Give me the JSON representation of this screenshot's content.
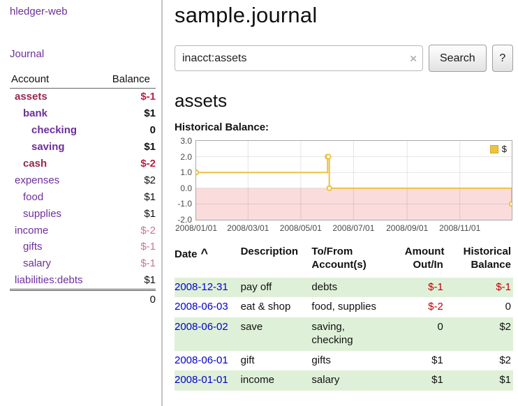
{
  "colors": {
    "purple": "#6d2f9c",
    "maroon": "#96284f",
    "negative_red": "#c01f3f",
    "soft_red": "#c9758b",
    "link_blue": "#0000cc",
    "row_green": "#dff0d8",
    "chart_line": "#EDC240",
    "chart_negative_fill": "#fbdcdc",
    "axis_text": "#4a4a4a",
    "table_red": "#c00000"
  },
  "app": {
    "title": "hledger-web"
  },
  "sidebar": {
    "journal_link": "Journal",
    "accounts": {
      "account_header": "Account",
      "balance_header": "Balance",
      "rows": [
        {
          "name": "assets",
          "indent": 1,
          "bold": true,
          "name_color": "maroon",
          "balance": "$-1",
          "balance_color": "red"
        },
        {
          "name": "bank",
          "indent": 2,
          "bold": true,
          "name_color": "purple",
          "balance": "$1",
          "balance_color": "black"
        },
        {
          "name": "checking",
          "indent": 3,
          "bold": true,
          "name_color": "purple",
          "balance": "0",
          "balance_color": "black"
        },
        {
          "name": "saving",
          "indent": 3,
          "bold": true,
          "name_color": "purple",
          "balance": "$1",
          "balance_color": "black"
        },
        {
          "name": "cash",
          "indent": 2,
          "bold": true,
          "name_color": "maroon",
          "balance": "$-2",
          "balance_color": "red"
        },
        {
          "name": "expenses",
          "indent": 1,
          "bold": false,
          "name_color": "purple",
          "balance": "$2",
          "balance_color": "black"
        },
        {
          "name": "food",
          "indent": 2,
          "bold": false,
          "name_color": "purple",
          "balance": "$1",
          "balance_color": "black"
        },
        {
          "name": "supplies",
          "indent": 2,
          "bold": false,
          "name_color": "purple",
          "balance": "$1",
          "balance_color": "black"
        },
        {
          "name": "income",
          "indent": 1,
          "bold": false,
          "name_color": "purple",
          "balance": "$-2",
          "balance_color": "soft"
        },
        {
          "name": "gifts",
          "indent": 2,
          "bold": false,
          "name_color": "purple",
          "balance": "$-1",
          "balance_color": "soft"
        },
        {
          "name": "salary",
          "indent": 2,
          "bold": false,
          "name_color": "purple",
          "balance": "$-1",
          "balance_color": "soft"
        },
        {
          "name": "liabilities:debts",
          "indent": 1,
          "bold": false,
          "name_color": "purple",
          "balance": "$1",
          "balance_color": "black"
        }
      ],
      "total": "0"
    }
  },
  "main": {
    "title": "sample.journal",
    "search": {
      "value": "inacct:assets",
      "clear_icon": "×",
      "button_label": "Search",
      "help_label": "?"
    },
    "account_heading": "assets"
  },
  "chart_data": {
    "type": "line",
    "step": true,
    "title": "Historical Balance:",
    "legend_label": "$",
    "legend_position": "top-right",
    "series": [
      {
        "name": "$",
        "x": [
          "2008-01-01",
          "2008-06-01",
          "2008-06-02",
          "2008-06-03",
          "2008-12-31"
        ],
        "values": [
          1,
          2,
          2,
          0,
          -1
        ]
      }
    ],
    "ylim": [
      -2,
      3
    ],
    "yticks": [
      3,
      2,
      1,
      0,
      -1,
      -2
    ],
    "xtick_labels": [
      "2008/01/01",
      "2008/03/01",
      "2008/05/01",
      "2008/07/01",
      "2008/09/01",
      "2008/11/01"
    ],
    "grid": true,
    "line_color": "#EDC240",
    "negative_fill": "#fbdcdc"
  },
  "register": {
    "headers": {
      "date": "Date",
      "sort_indicator": "^",
      "description": "Description",
      "accounts": "To/From Account(s)",
      "amount": "Amount Out/In",
      "balance": "Historical Balance"
    },
    "rows": [
      {
        "date": "2008-12-31",
        "description": "pay off",
        "accounts": [
          "debts"
        ],
        "amount": "$-1",
        "amount_negative": true,
        "balance": "$-1",
        "balance_negative": true,
        "shaded": true
      },
      {
        "date": "2008-06-03",
        "description": "eat & shop",
        "accounts": [
          "food, supplies"
        ],
        "amount": "$-2",
        "amount_negative": true,
        "balance": "0",
        "balance_negative": false,
        "shaded": false
      },
      {
        "date": "2008-06-02",
        "description": "save",
        "accounts": [
          "saving,",
          "checking"
        ],
        "amount": "0",
        "amount_negative": false,
        "balance": "$2",
        "balance_negative": false,
        "shaded": true
      },
      {
        "date": "2008-06-01",
        "description": "gift",
        "accounts": [
          "gifts"
        ],
        "amount": "$1",
        "amount_negative": false,
        "balance": "$2",
        "balance_negative": false,
        "shaded": false
      },
      {
        "date": "2008-01-01",
        "description": "income",
        "accounts": [
          "salary"
        ],
        "amount": "$1",
        "amount_negative": false,
        "balance": "$1",
        "balance_negative": false,
        "shaded": true
      }
    ]
  }
}
